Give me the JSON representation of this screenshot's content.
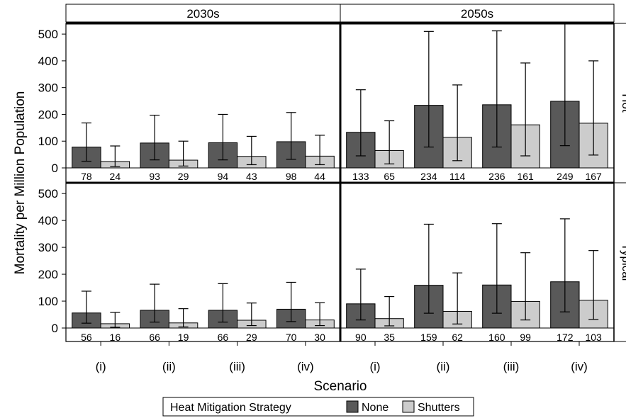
{
  "chart_data": {
    "type": "bar",
    "ylabel": "Mortality per Million Population",
    "xlabel": "Scenario",
    "ylim": [
      0,
      540
    ],
    "yticks": [
      0,
      100,
      200,
      300,
      400,
      500
    ],
    "categories": [
      "(i)",
      "(ii)",
      "(iii)",
      "(iv)"
    ],
    "columns": [
      "2030s",
      "2050s"
    ],
    "rows": [
      "Hot",
      "Typical"
    ],
    "legend": {
      "title": "Heat Mitigation Strategy",
      "position": "bottom",
      "entries": [
        "None",
        "Shutters"
      ]
    },
    "colors": {
      "None": "#595959",
      "Shutters": "#cccccc"
    },
    "panels": [
      {
        "column": "2030s",
        "row": "Hot",
        "series": [
          {
            "name": "None",
            "values": [
              78,
              93,
              94,
              98
            ],
            "err_low": [
              25,
              30,
              30,
              32
            ],
            "err_high": [
              168,
              197,
              200,
              207
            ]
          },
          {
            "name": "Shutters",
            "values": [
              24,
              29,
              43,
              44
            ],
            "err_low": [
              5,
              7,
              12,
              12
            ],
            "err_high": [
              82,
              100,
              118,
              122
            ]
          }
        ]
      },
      {
        "column": "2050s",
        "row": "Hot",
        "series": [
          {
            "name": "None",
            "values": [
              133,
              234,
              236,
              249
            ],
            "err_low": [
              45,
              78,
              78,
              83
            ],
            "err_high": [
              292,
              510,
              512,
              540
            ]
          },
          {
            "name": "Shutters",
            "values": [
              65,
              114,
              161,
              167
            ],
            "err_low": [
              15,
              27,
              45,
              48
            ],
            "err_high": [
              176,
              310,
              392,
              400
            ]
          }
        ]
      },
      {
        "column": "2030s",
        "row": "Typical",
        "series": [
          {
            "name": "None",
            "values": [
              56,
              66,
              66,
              70
            ],
            "err_low": [
              18,
              22,
              22,
              24
            ],
            "err_high": [
              137,
              163,
              165,
              170
            ]
          },
          {
            "name": "Shutters",
            "values": [
              16,
              19,
              29,
              30
            ],
            "err_low": [
              3,
              4,
              9,
              9
            ],
            "err_high": [
              58,
              72,
              93,
              94
            ]
          }
        ]
      },
      {
        "column": "2050s",
        "row": "Typical",
        "series": [
          {
            "name": "None",
            "values": [
              90,
              159,
              160,
              172
            ],
            "err_low": [
              30,
              55,
              55,
              60
            ],
            "err_high": [
              219,
              386,
              388,
              406
            ]
          },
          {
            "name": "Shutters",
            "values": [
              35,
              62,
              99,
              103
            ],
            "err_low": [
              8,
              15,
              30,
              32
            ],
            "err_high": [
              117,
              205,
              280,
              288
            ]
          }
        ]
      }
    ]
  }
}
